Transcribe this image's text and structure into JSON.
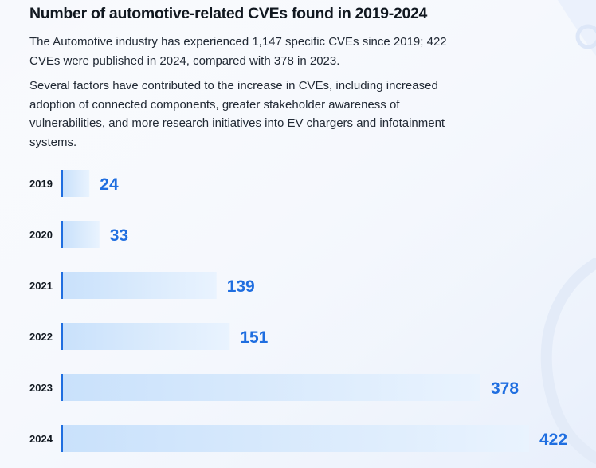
{
  "header": {
    "title": "Number of automotive-related CVEs found in 2019-2024"
  },
  "paragraphs": [
    "The Automotive industry has experienced 1,147 specific CVEs since 2019; 422 CVEs were published in 2024, compared with 378 in 2023.",
    "Several factors have contributed to the increase in CVEs, including increased adoption of connected components, greater stakeholder awareness of vulnerabilities, and more research initiatives into EV chargers and infotainment systems."
  ],
  "colors": {
    "accent": "#1f6ee0",
    "bar_start": "#c9e1fb",
    "bar_end": "#e9f3fe"
  },
  "chart_data": {
    "type": "bar",
    "orientation": "horizontal",
    "categories": [
      "2019",
      "2020",
      "2021",
      "2022",
      "2023",
      "2024"
    ],
    "values": [
      24,
      33,
      139,
      151,
      378,
      422
    ],
    "title": "Number of automotive-related CVEs found in 2019-2024",
    "xlabel": "",
    "ylabel": "",
    "xlim": [
      0,
      422
    ],
    "grid": false,
    "legend": "none"
  }
}
